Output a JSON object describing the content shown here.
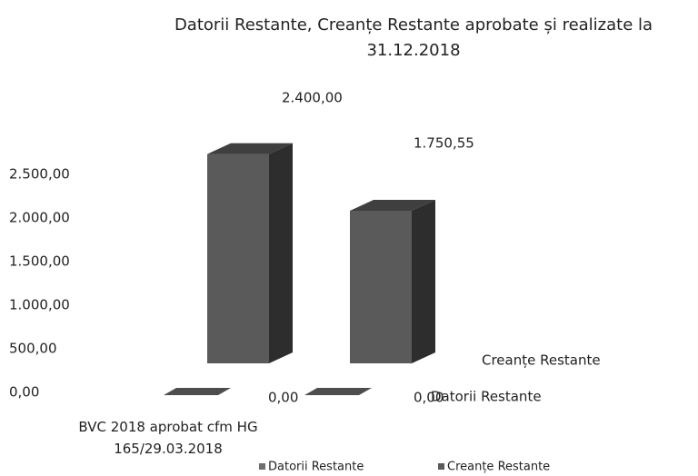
{
  "chart_data": {
    "type": "bar3d",
    "title": "Datorii Restante, Creanțe Restante aprobate și realizate la 31.12.2018",
    "categories": [
      "BVC 2018 aprobat cfm HG 165/29.03.2018",
      null
    ],
    "series": [
      {
        "name": "Datorii Restante",
        "color": "#6e6e6e",
        "values": [
          0,
          0
        ],
        "value_labels": [
          "0,00",
          "0,00"
        ]
      },
      {
        "name": "Creanțe Restante",
        "color": "#5a5a5a",
        "values": [
          2400,
          1750.55
        ],
        "value_labels": [
          "2.400,00",
          "1.750,55"
        ]
      }
    ],
    "ylim": [
      0,
      2500
    ],
    "yticks": [
      {
        "value": 0,
        "label": "0,00"
      },
      {
        "value": 500,
        "label": "500,00"
      },
      {
        "value": 1000,
        "label": "1.000,00"
      },
      {
        "value": 1500,
        "label": "1.500,00"
      },
      {
        "value": 2000,
        "label": "2.000,00"
      },
      {
        "value": 2500,
        "label": "2.500,00"
      }
    ]
  }
}
